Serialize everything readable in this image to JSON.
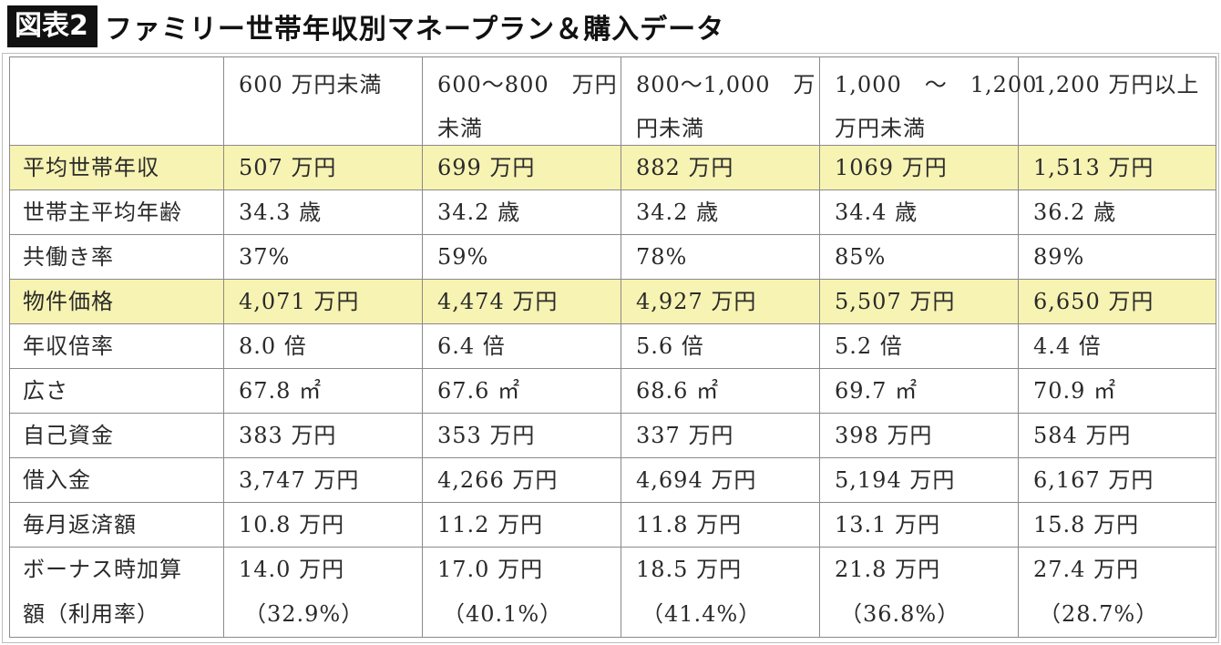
{
  "title": {
    "badge": "図表2",
    "text": "ファミリー世帯年収別マネープラン＆購入データ"
  },
  "table": {
    "headers": [
      [],
      [
        "600 万円未満"
      ],
      [
        "600～800　万円",
        "未満"
      ],
      [
        "800～1,000　万",
        "円未満"
      ],
      [
        "1,000　～　1,200",
        "万円未満"
      ],
      [
        "1,200 万円以上"
      ]
    ],
    "rows": [
      {
        "label": "平均世帯年収",
        "highlight": true,
        "cells": [
          [
            "507 万円"
          ],
          [
            "699 万円"
          ],
          [
            "882 万円"
          ],
          [
            "1069 万円"
          ],
          [
            "1,513 万円"
          ]
        ]
      },
      {
        "label": "世帯主平均年齢",
        "highlight": false,
        "cells": [
          [
            "34.3 歳"
          ],
          [
            "34.2 歳"
          ],
          [
            "34.2 歳"
          ],
          [
            "34.4 歳"
          ],
          [
            "36.2 歳"
          ]
        ]
      },
      {
        "label": "共働き率",
        "highlight": false,
        "cells": [
          [
            "37%"
          ],
          [
            "59%"
          ],
          [
            "78%"
          ],
          [
            "85%"
          ],
          [
            "89%"
          ]
        ]
      },
      {
        "label": "物件価格",
        "highlight": true,
        "cells": [
          [
            "4,071 万円"
          ],
          [
            "4,474 万円"
          ],
          [
            "4,927 万円"
          ],
          [
            "5,507 万円"
          ],
          [
            "6,650 万円"
          ]
        ]
      },
      {
        "label": "年収倍率",
        "highlight": false,
        "cells": [
          [
            "8.0 倍"
          ],
          [
            "6.4 倍"
          ],
          [
            "5.6 倍"
          ],
          [
            "5.2 倍"
          ],
          [
            "4.4 倍"
          ]
        ]
      },
      {
        "label": "広さ",
        "highlight": false,
        "cells": [
          [
            "67.8 ㎡"
          ],
          [
            "67.6 ㎡"
          ],
          [
            "68.6 ㎡"
          ],
          [
            "69.7 ㎡"
          ],
          [
            "70.9 ㎡"
          ]
        ]
      },
      {
        "label": "自己資金",
        "highlight": false,
        "cells": [
          [
            "383 万円"
          ],
          [
            "353 万円"
          ],
          [
            "337 万円"
          ],
          [
            "398 万円"
          ],
          [
            "584 万円"
          ]
        ]
      },
      {
        "label": "借入金",
        "highlight": false,
        "cells": [
          [
            "3,747 万円"
          ],
          [
            "4,266 万円"
          ],
          [
            "4,694 万円"
          ],
          [
            "5,194 万円"
          ],
          [
            "6,167 万円"
          ]
        ]
      },
      {
        "label": "毎月返済額",
        "highlight": false,
        "cells": [
          [
            "10.8 万円"
          ],
          [
            "11.2 万円"
          ],
          [
            "11.8 万円"
          ],
          [
            "13.1 万円"
          ],
          [
            "15.8 万円"
          ]
        ]
      },
      {
        "label": "ボーナス時加算\n額（利用率）",
        "highlight": false,
        "tall": true,
        "cells": [
          [
            "14.0 万円",
            "（32.9%）"
          ],
          [
            "17.0 万円",
            "（40.1%）"
          ],
          [
            "18.5 万円",
            "（41.4%）"
          ],
          [
            "21.8 万円",
            "（36.8%）"
          ],
          [
            "27.4 万円",
            "（28.7%）"
          ]
        ]
      }
    ]
  },
  "colors": {
    "highlight": "#f7f3b3",
    "border": "#8a8a8a",
    "badge_bg": "#111111"
  }
}
